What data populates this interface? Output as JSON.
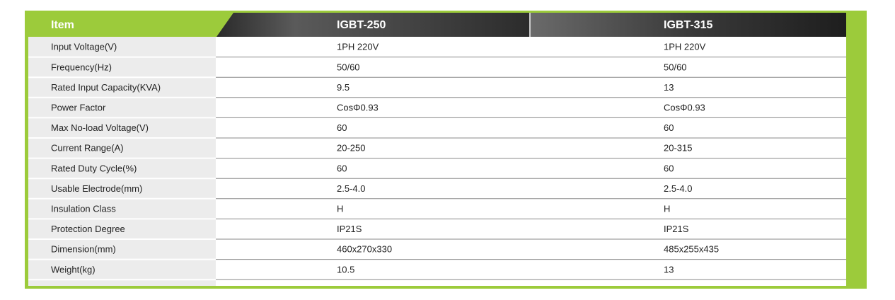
{
  "table": {
    "header": [
      "Item",
      "IGBT-250",
      "IGBT-315"
    ],
    "rows": [
      [
        "Input Voltage(V)",
        "1PH 220V",
        "1PH 220V"
      ],
      [
        "Frequency(Hz)",
        "50/60",
        "50/60"
      ],
      [
        "Rated Input Capacity(KVA)",
        "9.5",
        "13"
      ],
      [
        "Power Factor",
        "CosΦ0.93",
        "CosΦ0.93"
      ],
      [
        "Max No-load Voltage(V)",
        "60",
        "60"
      ],
      [
        "Current Range(A)",
        "20-250",
        "20-315"
      ],
      [
        "Rated Duty Cycle(%)",
        "60",
        "60"
      ],
      [
        "Usable Electrode(mm)",
        "2.5-4.0",
        "2.5-4.0"
      ],
      [
        "Insulation Class",
        "H",
        "H"
      ],
      [
        "Protection Degree",
        "IP21S",
        "IP21S"
      ],
      [
        "Dimension(mm)",
        "460x270x330",
        "485x255x435"
      ],
      [
        "Weight(kg)",
        "10.5",
        "13"
      ]
    ]
  }
}
